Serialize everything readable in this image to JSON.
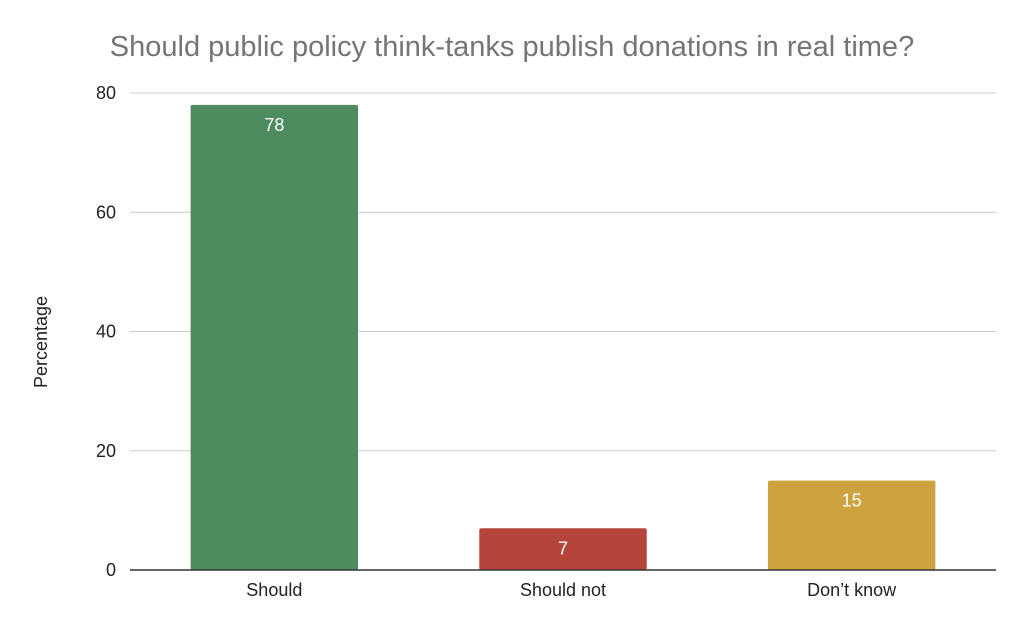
{
  "chart_data": {
    "type": "bar",
    "title": "Should public policy think-tanks publish donations in real time?",
    "xlabel": "",
    "ylabel": "Percentage",
    "categories": [
      "Should",
      "Should not",
      "Don’t know"
    ],
    "values": [
      78,
      7,
      15
    ],
    "colors": [
      "#4e8b5f",
      "#b5453a",
      "#cda33f"
    ],
    "data_labels": [
      "78",
      "7",
      "15"
    ],
    "ylim": [
      0,
      80
    ],
    "yticks": [
      0,
      20,
      40,
      60,
      80
    ],
    "grid": true,
    "legend": "none"
  }
}
